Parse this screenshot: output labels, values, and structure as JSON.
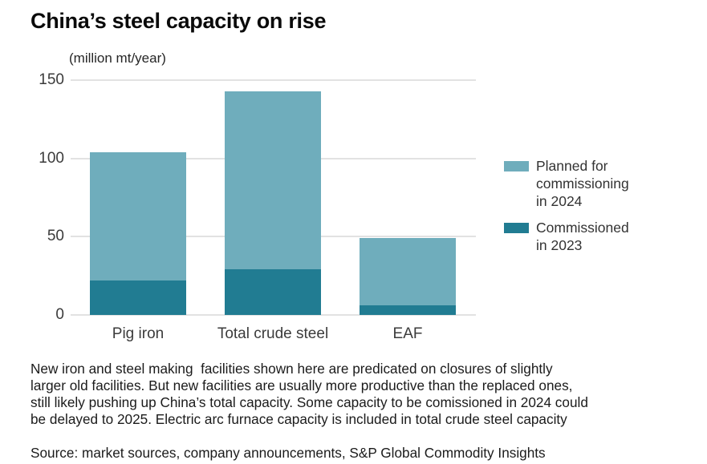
{
  "title": "China’s steel capacity on rise",
  "chart_data": {
    "type": "bar",
    "stacked": true,
    "unit_label": "(million mt/year)",
    "categories": [
      "Pig iron",
      "Total crude steel",
      "EAF"
    ],
    "series": [
      {
        "name": "Commissioned in 2023",
        "stack_position": "bottom",
        "color": "#217C92",
        "values": [
          22,
          29,
          6
        ]
      },
      {
        "name": "Planned for commissioning in 2024",
        "stack_position": "top",
        "color": "#6FADBC",
        "values": [
          82,
          114,
          43
        ]
      }
    ],
    "stacked_totals": [
      104,
      143,
      49
    ],
    "ylim": [
      0,
      150
    ],
    "yticks": [
      0,
      50,
      100,
      150
    ],
    "grid": "horizontal",
    "legend_position": "right",
    "legend": [
      {
        "label": "Planned for\ncommissioning\nin 2024",
        "color": "#6FADBC"
      },
      {
        "label": "Commissioned\nin 2023",
        "color": "#217C92"
      }
    ]
  },
  "footnote": {
    "lines": [
      "New iron and steel making  facilities shown here are predicated on closures of slightly",
      "larger old facilities. But new facilities are usually more productive than the replaced ones,",
      "still likely pushing up China’s total capacity. Some capacity to be comissioned in 2024 could",
      "be delayed to 2025. Electric arc furnace capacity is included in total crude steel capacity"
    ]
  },
  "source": "Source: market sources, company announcements, S&P Global Commodity Insights",
  "colors": {
    "planned_2024": "#6FADBC",
    "commissioned_2023": "#217C92",
    "gridline": "#e2e2e2",
    "text_dark": "#1b1b1b"
  }
}
